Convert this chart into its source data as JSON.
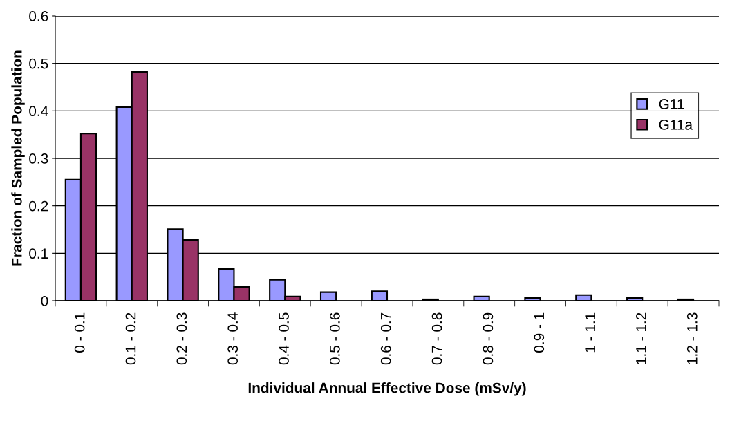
{
  "chart_data": {
    "type": "bar",
    "xlabel": "Individual Annual Effective Dose (mSv/y)",
    "ylabel": "Fraction of Sampled Population",
    "categories": [
      "0 - 0.1",
      "0.1 - 0.2",
      "0.2 - 0.3",
      "0.3 - 0.4",
      "0.4 - 0.5",
      "0.5 - 0.6",
      "0.6 - 0.7",
      "0.7 - 0.8",
      "0.8 - 0.9",
      "0.9 - 1",
      "1 - 1.1",
      "1.1 - 1.2",
      "1.2 - 1.3"
    ],
    "series": [
      {
        "name": "G11",
        "color": "#9999ff",
        "values": [
          0.255,
          0.408,
          0.151,
          0.067,
          0.044,
          0.018,
          0.02,
          0.003,
          0.009,
          0.006,
          0.012,
          0.006,
          0.003
        ]
      },
      {
        "name": "G11a",
        "color": "#993366",
        "values": [
          0.352,
          0.482,
          0.128,
          0.029,
          0.009,
          null,
          null,
          null,
          null,
          null,
          null,
          null,
          null
        ]
      }
    ],
    "ylim": [
      0,
      0.6
    ],
    "yticks": [
      0,
      0.1,
      0.2,
      0.3,
      0.4,
      0.5,
      0.6
    ],
    "grid": "y",
    "legend": "center right"
  }
}
